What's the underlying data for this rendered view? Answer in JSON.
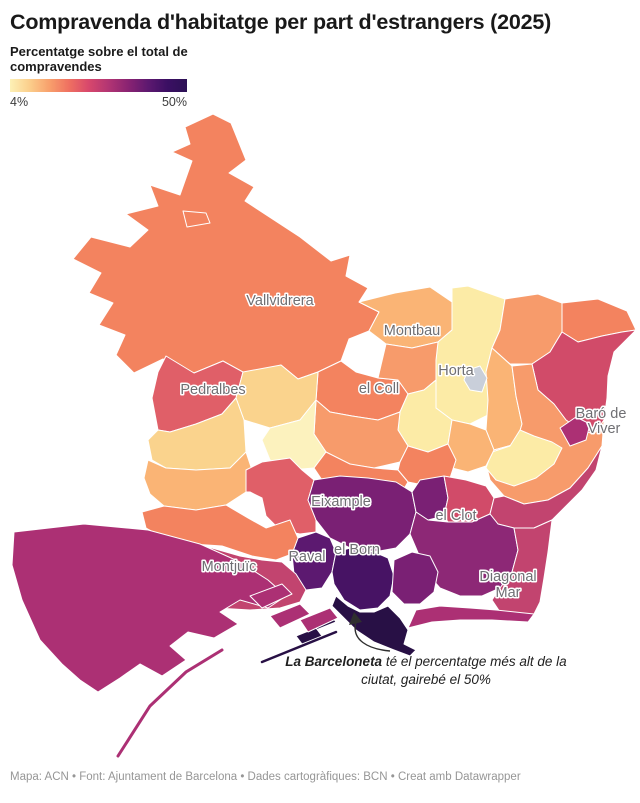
{
  "title": "Compravenda d'habitatge per part d'estrangers (2025)",
  "legend": {
    "title_line1": "Percentatge sobre el total de",
    "title_line2": "compravendes",
    "min_label": "4%",
    "max_label": "50%"
  },
  "map_labels": {
    "vallvidrera": "Vallvidrera",
    "montbau": "Montbau",
    "horta": "Horta",
    "el_coll": "el Coll",
    "pedralbes": "Pedralbes",
    "baro_de_viver_1": "Baró de",
    "baro_de_viver_2": "Viver",
    "eixample": "Eixample",
    "el_clot": "el Clot",
    "raval": "Raval",
    "el_born": "el Born",
    "montjuic": "Montjuïc",
    "diagonal_mar_1": "Diagonal",
    "diagonal_mar_2": "Mar"
  },
  "annotation": {
    "bold": "La Barceloneta",
    "rest": " té el percentatge més alt de la ciutat, gairebé el 50%"
  },
  "footer": "Mapa: ACN • Font: Ajuntament de Barcelona • Dades cartogràfiques: BCN  • Creat amb Datawrapper",
  "colors": {
    "y0": "#FCF2BE",
    "y1": "#FCEBA6",
    "y2": "#FAD38D",
    "o1": "#FAB475",
    "o2": "#F79B6B",
    "o3": "#F3835F",
    "r2": "#E05F68",
    "r3": "#D14B69",
    "m1": "#C2446F",
    "m2": "#AC3074",
    "p1": "#8D2876",
    "p2": "#7A2074",
    "p3": "#5C1970",
    "p4": "#471364",
    "p5": "#281045",
    "water": "#C9CFDA",
    "label_gray": "#6F6F73",
    "arrow": "#2F2F2F"
  },
  "chart_data": {
    "type": "choropleth_map",
    "title": "Compravenda d'habitatge per part d'estrangers (2025)",
    "subtitle": "Percentatge sobre el total de compravendes",
    "unit": "% sobre el total de compravendes",
    "scale": {
      "min": 4,
      "max": 50,
      "min_label": "4%",
      "max_label": "50%",
      "palette": [
        "#FDF1B6",
        "#FBCE8B",
        "#F8A06C",
        "#EF7061",
        "#D8486C",
        "#B23573",
        "#8A2372",
        "#5E1970",
        "#3B0F63",
        "#2C1155"
      ]
    },
    "regions": [
      {
        "name": "Vallvidrera",
        "value_pct_estimated": 17,
        "color": "#F3835F"
      },
      {
        "name": "Montbau",
        "value_pct_estimated": 11,
        "color": "#FAB475"
      },
      {
        "name": "Horta",
        "value_pct_estimated": 6,
        "color": "#FCEBA6"
      },
      {
        "name": "el Coll",
        "value_pct_estimated": 17,
        "color": "#F3835F"
      },
      {
        "name": "Pedralbes",
        "value_pct_estimated": 22,
        "color": "#E05F68"
      },
      {
        "name": "Baró de Viver",
        "value_pct_estimated": 31,
        "color": "#AC3074"
      },
      {
        "name": "Eixample",
        "value_pct_estimated": 37,
        "color": "#7A2074"
      },
      {
        "name": "el Clot",
        "value_pct_estimated": 25,
        "color": "#D14B69"
      },
      {
        "name": "Raval",
        "value_pct_estimated": 41,
        "color": "#5C1970"
      },
      {
        "name": "el Born",
        "value_pct_estimated": 44,
        "color": "#471364"
      },
      {
        "name": "Montjuïc",
        "value_pct_estimated": 28,
        "color": "#C2446F"
      },
      {
        "name": "Diagonal Mar",
        "value_pct_estimated": 34,
        "color": "#8D2876"
      },
      {
        "name": "La Barceloneta",
        "value_pct_estimated": 49,
        "color": "#281045"
      }
    ],
    "annotation": "La Barceloneta té el percentatge més alt de la ciutat, gairebé el 50%",
    "legend_position": "top-left",
    "grid": false
  }
}
